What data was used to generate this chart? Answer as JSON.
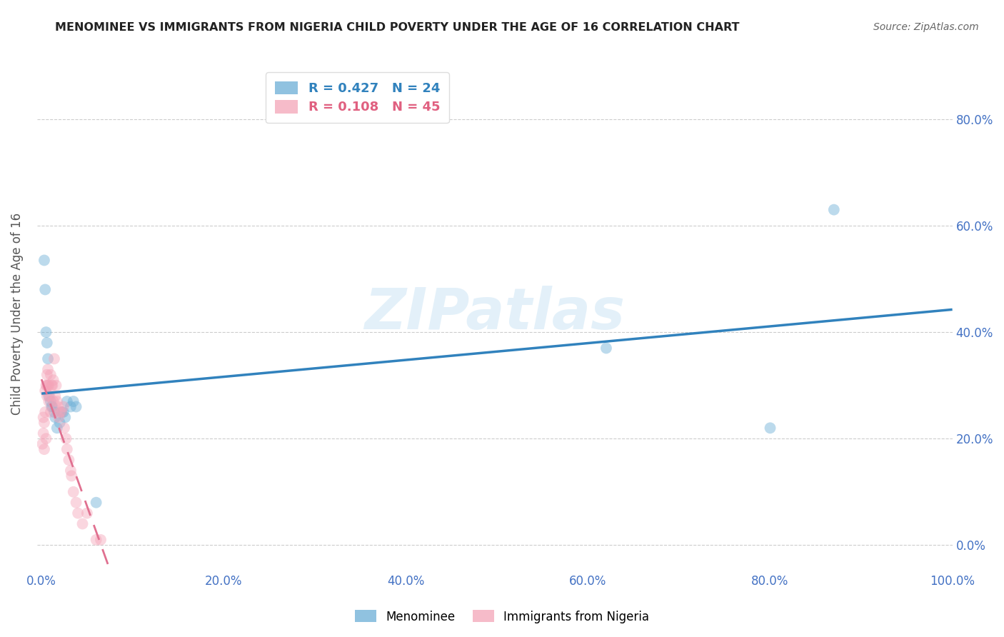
{
  "title": "MENOMINEE VS IMMIGRANTS FROM NIGERIA CHILD POVERTY UNDER THE AGE OF 16 CORRELATION CHART",
  "source": "Source: ZipAtlas.com",
  "ylabel": "Child Poverty Under the Age of 16",
  "xlim": [
    -0.005,
    1.0
  ],
  "ylim": [
    -0.05,
    0.92
  ],
  "yticks": [
    0.0,
    0.2,
    0.4,
    0.6,
    0.8
  ],
  "xticks": [
    0.0,
    0.2,
    0.4,
    0.6,
    0.8,
    1.0
  ],
  "xtick_labels": [
    "0.0%",
    "20.0%",
    "40.0%",
    "60.0%",
    "80.0%",
    "100.0%"
  ],
  "ytick_labels": [
    "0.0%",
    "20.0%",
    "40.0%",
    "60.0%",
    "80.0%"
  ],
  "menominee_R": 0.427,
  "menominee_N": 24,
  "nigeria_R": 0.108,
  "nigeria_N": 45,
  "blue_color": "#6baed6",
  "pink_color": "#f4a4b8",
  "blue_line_color": "#3182bd",
  "pink_line_color": "#e07090",
  "blue_text_color": "#3182bd",
  "pink_text_color": "#e06080",
  "background_color": "#ffffff",
  "grid_color": "#cccccc",
  "menominee_x": [
    0.003,
    0.004,
    0.005,
    0.006,
    0.007,
    0.008,
    0.01,
    0.011,
    0.012,
    0.014,
    0.015,
    0.017,
    0.02,
    0.022,
    0.024,
    0.026,
    0.028,
    0.032,
    0.035,
    0.038,
    0.06,
    0.62,
    0.8,
    0.87
  ],
  "menominee_y": [
    0.535,
    0.48,
    0.4,
    0.38,
    0.35,
    0.28,
    0.27,
    0.26,
    0.26,
    0.25,
    0.24,
    0.22,
    0.23,
    0.25,
    0.25,
    0.24,
    0.27,
    0.26,
    0.27,
    0.26,
    0.08,
    0.37,
    0.22,
    0.63
  ],
  "nigeria_x": [
    0.001,
    0.002,
    0.002,
    0.003,
    0.003,
    0.004,
    0.004,
    0.005,
    0.005,
    0.006,
    0.006,
    0.006,
    0.007,
    0.007,
    0.008,
    0.008,
    0.009,
    0.01,
    0.01,
    0.011,
    0.012,
    0.013,
    0.013,
    0.014,
    0.015,
    0.016,
    0.017,
    0.018,
    0.019,
    0.02,
    0.022,
    0.024,
    0.025,
    0.027,
    0.028,
    0.03,
    0.032,
    0.033,
    0.035,
    0.038,
    0.04,
    0.045,
    0.05,
    0.06,
    0.065
  ],
  "nigeria_y": [
    0.19,
    0.21,
    0.24,
    0.23,
    0.18,
    0.29,
    0.25,
    0.3,
    0.2,
    0.3,
    0.28,
    0.32,
    0.33,
    0.3,
    0.3,
    0.27,
    0.28,
    0.32,
    0.25,
    0.3,
    0.3,
    0.31,
    0.27,
    0.35,
    0.28,
    0.3,
    0.27,
    0.26,
    0.24,
    0.25,
    0.25,
    0.26,
    0.22,
    0.2,
    0.18,
    0.16,
    0.14,
    0.13,
    0.1,
    0.08,
    0.06,
    0.04,
    0.06,
    0.01,
    0.01
  ],
  "watermark_text": "ZIPatlas",
  "legend_label_1": "R = 0.427   N = 24",
  "legend_label_2": "R = 0.108   N = 45",
  "marker_size": 130,
  "marker_alpha": 0.45,
  "axis_label_color": "#4472c4",
  "title_color": "#222222",
  "title_fontsize": 11.5,
  "source_color": "#666666",
  "ylabel_color": "#555555"
}
